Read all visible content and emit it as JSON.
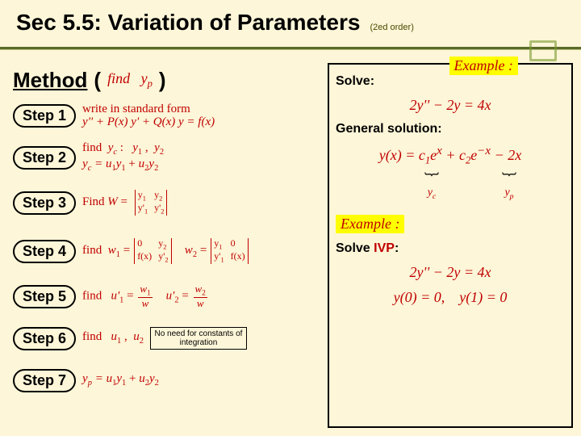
{
  "title": {
    "main": "Sec 5.5:  Variation of Parameters",
    "sub": "(2ed order)"
  },
  "exampleLabel": "Example :",
  "method": {
    "label": "Method",
    "lparen": "(",
    "formula_html": "<i>find</i> &nbsp; <i>y<sub>p</sub></i>",
    "rparen": ")"
  },
  "steps": [
    {
      "pill": "Step 1",
      "html": "write in standard form<br><span class='rnorm'><i>y'' + P(x) y' + Q(x) y = f(x)</i></span>"
    },
    {
      "pill": "Step 2",
      "html": "find &nbsp;<i>y<sub>c</sub></i> : &nbsp; <i>y</i><sub>1</sub> , &nbsp;<i>y</i><sub>2</sub><br><i>y<sub>c</sub> = u</i><sub>1</sub><i>y</i><sub>1</sub> + <i>u</i><sub>2</sub><i>y</i><sub>2</sub>"
    },
    {
      "pill": "Step 3",
      "det": {
        "prefix_html": "Find <i>W</i> =",
        "rows": [
          [
            "y<sub>1</sub>",
            "y<sub>2</sub>"
          ],
          [
            "y'<sub>1</sub>",
            "y'<sub>2</sub>"
          ]
        ]
      }
    },
    {
      "pill": "Step 4",
      "twodets": {
        "prefix_html": "find",
        "a": {
          "lhs_html": "<i>w</i><sub>1</sub> =",
          "rows": [
            [
              "0",
              "y<sub>2</sub>"
            ],
            [
              "f(x)",
              "y'<sub>2</sub>"
            ]
          ]
        },
        "b": {
          "lhs_html": "<i>w</i><sub>2</sub> =",
          "rows": [
            [
              "y<sub>1</sub>",
              "0"
            ],
            [
              "y'<sub>1</sub>",
              "f(x)"
            ]
          ]
        }
      }
    },
    {
      "pill": "Step 5",
      "html": "find &nbsp; <i>u'</i><sub>1</sub> = <span class='frac'><span class='num'><i>w</i><sub>1</sub></span><span class='den'><i>w</i></span></span> &nbsp;&nbsp; <i>u'</i><sub>2</sub> = <span class='frac'><span class='num'><i>w</i><sub>2</sub></span><span class='den'><i>w</i></span></span>"
    },
    {
      "pill": "Step 6",
      "html": "find &nbsp; <i>u</i><sub>1</sub> , &nbsp;<i>u</i><sub>2</sub>",
      "note": "No need for constants of integration"
    },
    {
      "pill": "Step 7",
      "html": "<i>y<sub>p</sub> = u</i><sub>1</sub><i>y</i><sub>1</sub> + <i>u</i><sub>2</sub><i>y</i><sub>2</sub>"
    }
  ],
  "right": {
    "solve": "Solve:",
    "eq1_html": "2<i>y''</i> − 2<i>y</i> = 4<i>x</i>",
    "gensol": "General solution:",
    "gensol_eq_html": "<i>y</i>(<i>x</i>) = <i>c</i><sub>1</sub><i>e<sup>x</sup></i> + <i>c</i><sub>2</sub><i>e</i><sup>−<i>x</i></sup> − 2<i>x</i>",
    "brace_yc": "y_c",
    "brace_yp": "y_p",
    "example2": "Example :",
    "solve_ivp_prefix": "Solve ",
    "solve_ivp": "IVP",
    "solve_ivp_suffix": ":",
    "ivp_eq_html": "2<i>y''</i> − 2<i>y</i> = 4<i>x</i>",
    "ivp_cond_html": "<i>y</i>(0) = 0, &nbsp;&nbsp; <i>y</i>(1) = 0"
  },
  "colors": {
    "background": "#fdf6d8",
    "accent": "#6b8e23",
    "formula": "#c00000",
    "highlight": "#ffff00"
  }
}
